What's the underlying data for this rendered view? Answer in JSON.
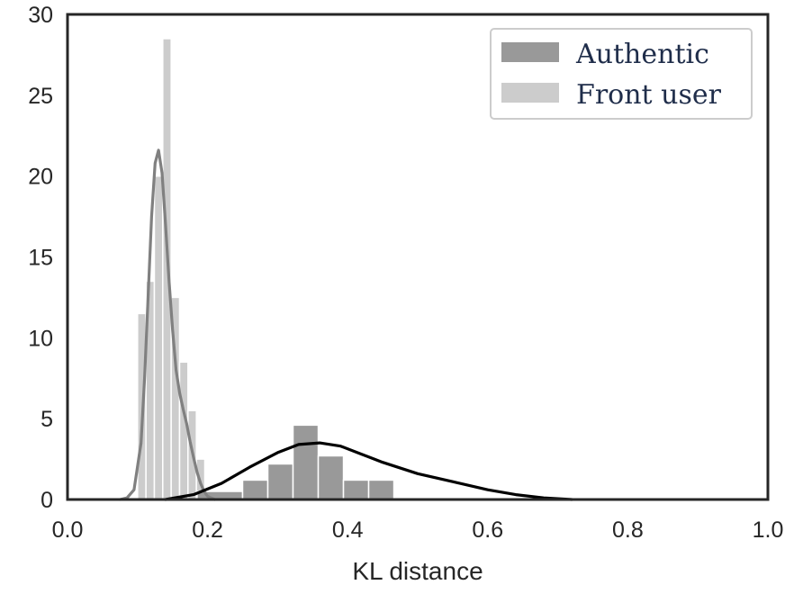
{
  "chart_data": {
    "type": "histogram",
    "title": "",
    "xlabel": "KL distance",
    "ylabel": "",
    "xlim": [
      0.0,
      1.0
    ],
    "ylim": [
      0,
      30
    ],
    "xticks": [
      "0.0",
      "0.2",
      "0.4",
      "0.6",
      "0.8",
      "1.0"
    ],
    "yticks": [
      "0",
      "5",
      "10",
      "15",
      "20",
      "25",
      "30"
    ],
    "grid": false,
    "legend_position": "top-right",
    "series": [
      {
        "name": "Front user",
        "color": "#cccccc",
        "edge_color": "#ffffff",
        "bins": [
          {
            "x0": 0.1,
            "x1": 0.112,
            "value": 11.5
          },
          {
            "x0": 0.112,
            "x1": 0.124,
            "value": 13.5
          },
          {
            "x0": 0.124,
            "x1": 0.136,
            "value": 20.0
          },
          {
            "x0": 0.136,
            "x1": 0.148,
            "value": 28.5
          },
          {
            "x0": 0.148,
            "x1": 0.16,
            "value": 12.5
          },
          {
            "x0": 0.16,
            "x1": 0.172,
            "value": 8.5
          },
          {
            "x0": 0.172,
            "x1": 0.184,
            "value": 5.5
          },
          {
            "x0": 0.184,
            "x1": 0.196,
            "value": 2.5
          }
        ],
        "kde": {
          "color": "#808080",
          "x": [
            0.075,
            0.085,
            0.095,
            0.105,
            0.11,
            0.115,
            0.12,
            0.125,
            0.13,
            0.135,
            0.14,
            0.145,
            0.15,
            0.155,
            0.16,
            0.165,
            0.17,
            0.175,
            0.18,
            0.185,
            0.19,
            0.195,
            0.2,
            0.21
          ],
          "y": [
            0.0,
            0.1,
            0.6,
            3.5,
            7.5,
            12.5,
            17.5,
            20.8,
            21.6,
            20.2,
            17.0,
            13.5,
            10.5,
            8.0,
            6.6,
            5.6,
            4.7,
            3.6,
            2.6,
            1.7,
            1.0,
            0.5,
            0.2,
            0.0
          ]
        }
      },
      {
        "name": "Authentic",
        "color": "#999999",
        "edge_color": "#ffffff",
        "bins": [
          {
            "x0": 0.185,
            "x1": 0.25,
            "value": 0.5
          },
          {
            "x0": 0.25,
            "x1": 0.286,
            "value": 1.2
          },
          {
            "x0": 0.286,
            "x1": 0.322,
            "value": 2.2
          },
          {
            "x0": 0.322,
            "x1": 0.358,
            "value": 4.6
          },
          {
            "x0": 0.358,
            "x1": 0.394,
            "value": 2.7
          },
          {
            "x0": 0.394,
            "x1": 0.43,
            "value": 1.2
          },
          {
            "x0": 0.43,
            "x1": 0.466,
            "value": 1.2
          }
        ],
        "kde": {
          "color": "#000000",
          "x": [
            0.14,
            0.18,
            0.22,
            0.26,
            0.3,
            0.33,
            0.36,
            0.39,
            0.42,
            0.45,
            0.5,
            0.55,
            0.6,
            0.64,
            0.68,
            0.72
          ],
          "y": [
            0.0,
            0.3,
            1.0,
            2.0,
            2.9,
            3.4,
            3.5,
            3.3,
            2.8,
            2.3,
            1.6,
            1.1,
            0.6,
            0.3,
            0.1,
            0.0
          ]
        }
      }
    ]
  }
}
